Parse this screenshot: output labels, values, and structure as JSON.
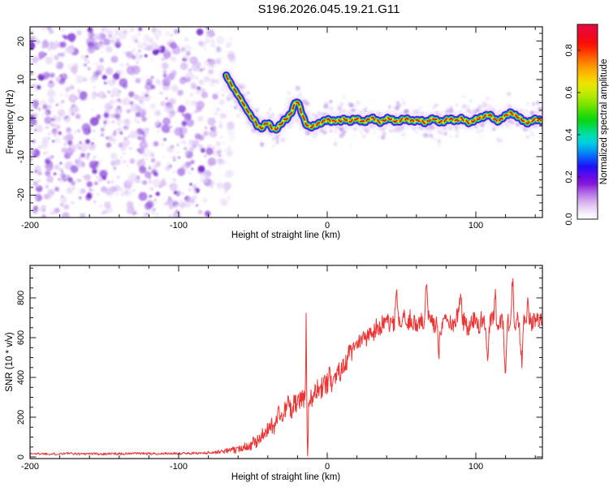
{
  "title": "S196.2026.045.19.21.G11",
  "colors": {
    "frame": "#1a1a1a",
    "snr_line": "#ee3333",
    "background": "#ffffff"
  },
  "colorbar": {
    "label": "Normalized spectral amplitude",
    "tick_values": [
      0.0,
      0.2,
      0.4,
      0.6,
      0.8
    ],
    "tick_labels": [
      "0.0",
      "0.2",
      "0.4",
      "0.6",
      "0.8"
    ],
    "stops": [
      [
        0.0,
        "#ffffff"
      ],
      [
        0.03,
        "#f6eefb"
      ],
      [
        0.07,
        "#e3c6f4"
      ],
      [
        0.11,
        "#c693ea"
      ],
      [
        0.15,
        "#a553e2"
      ],
      [
        0.18,
        "#8518da"
      ],
      [
        0.21,
        "#6f0ae4"
      ],
      [
        0.24,
        "#4a0bf0"
      ],
      [
        0.27,
        "#1d11f6"
      ],
      [
        0.3,
        "#1240fa"
      ],
      [
        0.33,
        "#0673f8"
      ],
      [
        0.36,
        "#00a5ee"
      ],
      [
        0.39,
        "#00cce2"
      ],
      [
        0.42,
        "#00dcc0"
      ],
      [
        0.45,
        "#00dd8a"
      ],
      [
        0.48,
        "#04da46"
      ],
      [
        0.51,
        "#0ad50e"
      ],
      [
        0.55,
        "#3fdf00"
      ],
      [
        0.59,
        "#7ee400"
      ],
      [
        0.63,
        "#b2e800"
      ],
      [
        0.67,
        "#d9e900"
      ],
      [
        0.7,
        "#eee000"
      ],
      [
        0.73,
        "#f9c900"
      ],
      [
        0.76,
        "#feae00"
      ],
      [
        0.79,
        "#ff9000"
      ],
      [
        0.82,
        "#ff6d00"
      ],
      [
        0.85,
        "#ff4700"
      ],
      [
        0.88,
        "#fc2200"
      ],
      [
        0.91,
        "#f60d08"
      ],
      [
        0.94,
        "#f00820"
      ],
      [
        0.97,
        "#ea0834"
      ],
      [
        1.0,
        "#e60a3c"
      ]
    ]
  },
  "chart_data": [
    {
      "type": "heatmap",
      "title": "S196.2026.045.19.21.G11",
      "xlabel": "Height of straight line (km)",
      "ylabel": "Frequency (Hz)",
      "xlim": [
        -200,
        144.8
      ],
      "ylim": [
        -25.8,
        23.7
      ],
      "x_ticks": [
        -200,
        -100,
        0,
        100
      ],
      "x_tick_labels": [
        "-200",
        "-100",
        "0",
        "100"
      ],
      "x_minor_step": 20,
      "y_ticks": [
        -20,
        -10,
        0,
        10,
        20
      ],
      "y_tick_labels": [
        "-20",
        "-10",
        "0",
        "10",
        "20"
      ],
      "y_minor_step": 2,
      "grid": false,
      "noise_region": {
        "seed": 7,
        "blob_count": 950,
        "km_min": -200,
        "km_max": -62,
        "fade_start_km": -84,
        "palette": [
          "#eadcf8",
          "#dcc2f3",
          "#c49df0",
          "#a875e6",
          "#8b44dc",
          "#6f17cf",
          "#5c08c0"
        ],
        "weights": [
          0.26,
          0.22,
          0.18,
          0.14,
          0.1,
          0.06,
          0.04
        ]
      },
      "halo": {
        "seed": 99,
        "count": 320,
        "km_min": -67,
        "km_max": 144.8,
        "palette": [
          "#e7d9f7",
          "#d3b8f0",
          "#bb93e8",
          "#9a5fe0"
        ]
      },
      "trace_layers": [
        {
          "color": "#c9a2ef",
          "width": 15,
          "opacity": 0.32,
          "blur": true
        },
        {
          "color": "#6a0fd8",
          "width": 9.5,
          "opacity": 0.85
        },
        {
          "color": "#2318f2",
          "width": 7.6,
          "opacity": 0.95
        },
        {
          "color": "#00cfe0",
          "width": 5.6,
          "opacity": 1
        },
        {
          "color": "#1fd723",
          "width": 4.1,
          "opacity": 1
        },
        {
          "color": "#e3e800",
          "width": 2.8,
          "opacity": 1
        },
        {
          "color": "#ee1111",
          "width": 1.8,
          "opacity": 1,
          "dash": "5.5 4.2"
        }
      ],
      "trace_points": [
        [
          -68,
          11
        ],
        [
          -65.5,
          9.4
        ],
        [
          -63,
          7.8
        ],
        [
          -60.5,
          6.2
        ],
        [
          -58,
          4.7
        ],
        [
          -55.5,
          3.1
        ],
        [
          -53,
          1.6
        ],
        [
          -51,
          0.3
        ],
        [
          -49,
          -0.9
        ],
        [
          -47,
          -1.9
        ],
        [
          -45,
          -2.5
        ],
        [
          -43.5,
          -2.2
        ],
        [
          -42,
          -1.6
        ],
        [
          -40.5,
          -1.3
        ],
        [
          -39,
          -1.8
        ],
        [
          -37.5,
          -2.5
        ],
        [
          -36,
          -2.8
        ],
        [
          -34.5,
          -2.7
        ],
        [
          -33,
          -2.2
        ],
        [
          -31,
          -1.5
        ],
        [
          -29,
          -0.8
        ],
        [
          -27,
          -0.1
        ],
        [
          -25.5,
          0.8
        ],
        [
          -24,
          1.8
        ],
        [
          -22.5,
          3.1
        ],
        [
          -21.5,
          4.0
        ],
        [
          -20.5,
          4.3
        ],
        [
          -19.5,
          3.6
        ],
        [
          -18,
          2.2
        ],
        [
          -16.5,
          0.6
        ],
        [
          -15,
          -0.8
        ],
        [
          -13.5,
          -1.7
        ],
        [
          -12,
          -2.2
        ],
        [
          -10,
          -2.4
        ],
        [
          -8,
          -2.0
        ],
        [
          -6,
          -1.4
        ],
        [
          -4,
          -1.0
        ],
        [
          -2,
          -0.7
        ],
        [
          0,
          -0.6
        ],
        [
          3,
          -0.9
        ],
        [
          6,
          -0.4
        ],
        [
          9,
          -0.8
        ],
        [
          12,
          -0.4
        ],
        [
          15,
          -0.7
        ],
        [
          18,
          -0.2
        ],
        [
          21,
          -0.6
        ],
        [
          24,
          -0.9
        ],
        [
          27,
          -0.4
        ],
        [
          30,
          -0.2
        ],
        [
          33,
          -0.6
        ],
        [
          36,
          -0.9
        ],
        [
          39,
          -0.5
        ],
        [
          42,
          -0.2
        ],
        [
          45,
          -0.5
        ],
        [
          48,
          -0.9
        ],
        [
          51,
          -0.5
        ],
        [
          54,
          -0.2
        ],
        [
          57,
          -0.6
        ],
        [
          60,
          -0.9
        ],
        [
          63,
          -0.6
        ],
        [
          66,
          -1.0
        ],
        [
          69,
          -0.6
        ],
        [
          72,
          -0.3
        ],
        [
          75,
          -0.7
        ],
        [
          78,
          -1.0
        ],
        [
          81,
          -0.5
        ],
        [
          84,
          -0.2
        ],
        [
          87,
          -0.6
        ],
        [
          90,
          -0.3
        ],
        [
          93,
          -0.7
        ],
        [
          96,
          -1.0
        ],
        [
          99,
          -0.7
        ],
        [
          102,
          -0.2
        ],
        [
          105,
          0.5
        ],
        [
          108,
          0.9
        ],
        [
          110,
          0.4
        ],
        [
          112,
          -0.2
        ],
        [
          114,
          -0.6
        ],
        [
          116,
          -0.4
        ],
        [
          118,
          0.1
        ],
        [
          120,
          0.4
        ],
        [
          122,
          1.0
        ],
        [
          124,
          1.5
        ],
        [
          126,
          1.0
        ],
        [
          128,
          0.4
        ],
        [
          130,
          -0.3
        ],
        [
          132,
          -0.8
        ],
        [
          134,
          -1.1
        ],
        [
          136,
          -0.9
        ],
        [
          138,
          -0.6
        ],
        [
          141,
          -0.5
        ],
        [
          144.8,
          -0.6
        ]
      ]
    },
    {
      "type": "line",
      "xlabel": "Height of straight line (km)",
      "ylabel": "SNR (10 * v/v)",
      "xlim": [
        -200,
        144.8
      ],
      "ylim": [
        0,
        960
      ],
      "x_ticks": [
        -200,
        -100,
        0,
        100
      ],
      "x_tick_labels": [
        "-200",
        "-100",
        "0",
        "100"
      ],
      "x_minor_step": 20,
      "y_ticks": [
        0,
        200,
        400,
        600,
        800
      ],
      "y_tick_labels": [
        "0",
        "200",
        "400",
        "600",
        "800"
      ],
      "y_minor_step": 50,
      "grid": false,
      "seed": 1337,
      "step_km": 0.33,
      "noise_amp": [
        [
          -200,
          6
        ],
        [
          -85,
          6
        ],
        [
          -75,
          9
        ],
        [
          -65,
          14
        ],
        [
          -55,
          22
        ],
        [
          -45,
          34
        ],
        [
          -35,
          46
        ],
        [
          -25,
          52
        ],
        [
          -18,
          48
        ],
        [
          -14,
          40
        ],
        [
          -10,
          55
        ],
        [
          -5,
          58
        ],
        [
          0,
          60
        ],
        [
          10,
          56
        ],
        [
          20,
          52
        ],
        [
          30,
          48
        ],
        [
          60,
          46
        ],
        [
          100,
          48
        ],
        [
          144.8,
          44
        ]
      ],
      "anchors": [
        [
          -200,
          16
        ],
        [
          -192,
          17
        ],
        [
          -184,
          15
        ],
        [
          -176,
          18
        ],
        [
          -168,
          16
        ],
        [
          -160,
          17
        ],
        [
          -152,
          15
        ],
        [
          -144,
          17
        ],
        [
          -136,
          16
        ],
        [
          -128,
          18
        ],
        [
          -120,
          16
        ],
        [
          -112,
          17
        ],
        [
          -104,
          17
        ],
        [
          -96,
          18
        ],
        [
          -88,
          19
        ],
        [
          -82,
          21
        ],
        [
          -76,
          23
        ],
        [
          -72,
          26
        ],
        [
          -68,
          31
        ],
        [
          -64,
          36
        ],
        [
          -61,
          32
        ],
        [
          -58,
          46
        ],
        [
          -55,
          58
        ],
        [
          -52,
          50
        ],
        [
          -50,
          76
        ],
        [
          -48,
          64
        ],
        [
          -46,
          92
        ],
        [
          -44,
          118
        ],
        [
          -42,
          92
        ],
        [
          -40,
          148
        ],
        [
          -38,
          168
        ],
        [
          -36,
          142
        ],
        [
          -34,
          196
        ],
        [
          -32,
          228
        ],
        [
          -30,
          186
        ],
        [
          -28,
          248
        ],
        [
          -26,
          268
        ],
        [
          -24,
          222
        ],
        [
          -22,
          278
        ],
        [
          -20,
          258
        ],
        [
          -18,
          298
        ],
        [
          -16,
          288
        ],
        [
          -15,
          308
        ],
        [
          -14.6,
          380
        ],
        [
          -14.2,
          700
        ],
        [
          -13.8,
          300
        ],
        [
          -13.4,
          60
        ],
        [
          -13,
          10
        ],
        [
          -12.6,
          250
        ],
        [
          -12,
          300
        ],
        [
          -11,
          322
        ],
        [
          -10,
          302
        ],
        [
          -9,
          336
        ],
        [
          -8,
          318
        ],
        [
          -7,
          348
        ],
        [
          -6,
          316
        ],
        [
          -5,
          356
        ],
        [
          -4,
          340
        ],
        [
          -3,
          368
        ],
        [
          -2,
          352
        ],
        [
          -1,
          378
        ],
        [
          0,
          362
        ],
        [
          1,
          392
        ],
        [
          2,
          402
        ],
        [
          3,
          382
        ],
        [
          4,
          428
        ],
        [
          5,
          412
        ],
        [
          6,
          400
        ],
        [
          7,
          436
        ],
        [
          8,
          452
        ],
        [
          9,
          430
        ],
        [
          10,
          478
        ],
        [
          11,
          452
        ],
        [
          12,
          442
        ],
        [
          13,
          486
        ],
        [
          14,
          502
        ],
        [
          15,
          522
        ],
        [
          16,
          534
        ],
        [
          17,
          508
        ],
        [
          18,
          556
        ],
        [
          19,
          528
        ],
        [
          20,
          544
        ],
        [
          21,
          570
        ],
        [
          22,
          582
        ],
        [
          23,
          560
        ],
        [
          24,
          618
        ],
        [
          25,
          588
        ],
        [
          26,
          592
        ],
        [
          27,
          628
        ],
        [
          28,
          634
        ],
        [
          29,
          610
        ],
        [
          30,
          648
        ],
        [
          31,
          622
        ],
        [
          32,
          640
        ],
        [
          33,
          662
        ],
        [
          34,
          658
        ],
        [
          35,
          636
        ],
        [
          36,
          644
        ],
        [
          37,
          668
        ],
        [
          38,
          672
        ],
        [
          40,
          682
        ],
        [
          42,
          660
        ],
        [
          44,
          672
        ],
        [
          45,
          658
        ],
        [
          47,
          820
        ],
        [
          48,
          680
        ],
        [
          50,
          672
        ],
        [
          52,
          696
        ],
        [
          54,
          664
        ],
        [
          56,
          700
        ],
        [
          58,
          676
        ],
        [
          60,
          662
        ],
        [
          62,
          688
        ],
        [
          63,
          692
        ],
        [
          65,
          642
        ],
        [
          67,
          888
        ],
        [
          68,
          700
        ],
        [
          70,
          682
        ],
        [
          72,
          652
        ],
        [
          74,
          668
        ],
        [
          75,
          484
        ],
        [
          76,
          640
        ],
        [
          78,
          692
        ],
        [
          80,
          702
        ],
        [
          82,
          664
        ],
        [
          84,
          676
        ],
        [
          85,
          642
        ],
        [
          87,
          700
        ],
        [
          88,
          704
        ],
        [
          90,
          808
        ],
        [
          91,
          688
        ],
        [
          93,
          672
        ],
        [
          95,
          642
        ],
        [
          97,
          700
        ],
        [
          99,
          682
        ],
        [
          100,
          678
        ],
        [
          102,
          652
        ],
        [
          104,
          700
        ],
        [
          106,
          688
        ],
        [
          108,
          452
        ],
        [
          109,
          660
        ],
        [
          110,
          682
        ],
        [
          112,
          700
        ],
        [
          113,
          828
        ],
        [
          114,
          668
        ],
        [
          116,
          690
        ],
        [
          118,
          702
        ],
        [
          120,
          432
        ],
        [
          121,
          664
        ],
        [
          123,
          688
        ],
        [
          125,
          898
        ],
        [
          126,
          662
        ],
        [
          128,
          700
        ],
        [
          129,
          678
        ],
        [
          131,
          462
        ],
        [
          132,
          668
        ],
        [
          134,
          690
        ],
        [
          135,
          818
        ],
        [
          136,
          700
        ],
        [
          138,
          662
        ],
        [
          140,
          700
        ],
        [
          142,
          680
        ],
        [
          144.8,
          712
        ]
      ]
    }
  ]
}
